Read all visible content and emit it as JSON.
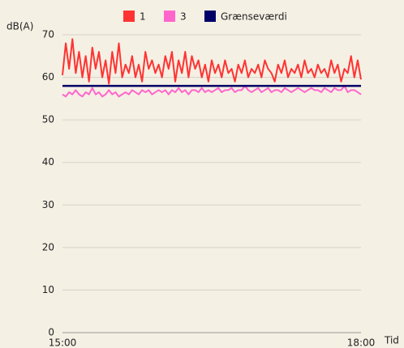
{
  "chart_data": {
    "type": "line",
    "y_label": "dB(A)",
    "x_label": "Tid",
    "x": [
      0,
      2,
      4,
      6,
      8,
      10,
      12,
      14,
      16,
      18,
      20,
      22,
      24,
      26,
      28,
      30,
      32,
      34,
      36,
      38,
      40,
      42,
      44,
      46,
      48,
      50,
      52,
      54,
      56,
      58,
      60,
      62,
      64,
      66,
      68,
      70,
      72,
      74,
      76,
      78,
      80,
      82,
      84,
      86,
      88,
      90,
      92,
      94,
      96,
      98,
      100,
      102,
      104,
      106,
      108,
      110,
      112,
      114,
      116,
      118,
      120,
      122,
      124,
      126,
      128,
      130,
      132,
      134,
      136,
      138,
      140,
      142,
      144,
      146,
      148,
      150,
      152,
      154,
      156,
      158,
      160,
      162,
      164,
      166,
      168,
      170,
      172,
      174,
      176,
      178,
      180
    ],
    "series": [
      {
        "name": "1",
        "color": "#ff3333",
        "values": [
          60.5,
          68,
          62,
          69,
          61,
          66,
          60,
          65,
          59,
          67,
          62,
          66,
          60,
          64,
          58.5,
          66,
          61,
          68,
          60,
          63,
          61,
          65,
          60,
          63,
          59,
          66,
          62,
          64,
          61,
          63,
          60,
          65,
          62,
          66,
          59,
          64,
          61,
          66,
          60,
          65,
          62,
          64,
          60,
          63,
          59,
          64,
          61,
          63,
          60,
          64,
          61,
          62,
          59,
          63,
          61,
          64,
          60,
          62,
          61,
          63,
          60,
          64,
          62,
          61,
          59,
          63,
          61,
          64,
          60,
          62,
          61,
          63,
          60,
          64,
          61,
          62,
          60,
          63,
          61,
          62,
          60,
          64,
          61,
          63,
          59,
          62,
          61,
          65,
          60,
          64,
          59.5
        ]
      },
      {
        "name": "3",
        "color": "#ff66cc",
        "values": [
          56,
          55.5,
          56.5,
          56,
          57,
          56,
          55.5,
          56.5,
          56,
          57.5,
          56,
          56.5,
          55.5,
          56,
          57,
          56,
          56.5,
          55.5,
          56,
          56.5,
          56,
          57,
          56.5,
          56,
          57,
          56.5,
          57,
          56,
          56.5,
          57,
          56.5,
          57,
          56,
          57,
          56.5,
          57.5,
          56.5,
          57,
          56,
          57,
          57,
          56.5,
          57.5,
          56.5,
          57,
          56.5,
          57,
          57.5,
          56.5,
          57,
          57,
          57.5,
          56.5,
          57,
          57,
          58,
          57,
          56.5,
          57,
          57.5,
          56.5,
          57,
          57.5,
          56.5,
          57,
          57,
          56.5,
          57.5,
          57,
          56.5,
          57,
          57.5,
          57,
          56.5,
          57,
          57.5,
          57,
          57,
          56.5,
          57.5,
          57,
          56.5,
          57.5,
          57,
          57,
          58,
          56.5,
          57,
          57,
          56.5,
          56
        ]
      },
      {
        "name": "Grænseværdi",
        "color": "#000066",
        "x": [
          0,
          180
        ],
        "values": [
          58,
          58
        ]
      }
    ],
    "xlim": [
      0,
      180
    ],
    "xticks": [
      {
        "value": 0,
        "label": "15:00"
      },
      {
        "value": 180,
        "label": "18:00"
      }
    ],
    "ylim": [
      0,
      70
    ],
    "yticks": [
      0,
      10,
      20,
      30,
      40,
      50,
      60,
      70
    ],
    "grid": true
  }
}
